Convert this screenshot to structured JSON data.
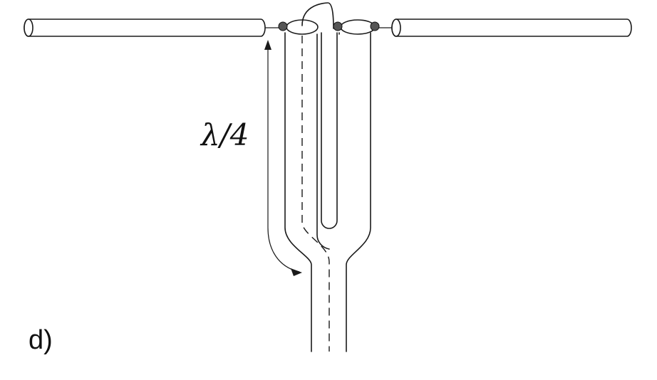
{
  "labels": {
    "quarter_wave": "λ/4",
    "panel": "d)"
  }
}
